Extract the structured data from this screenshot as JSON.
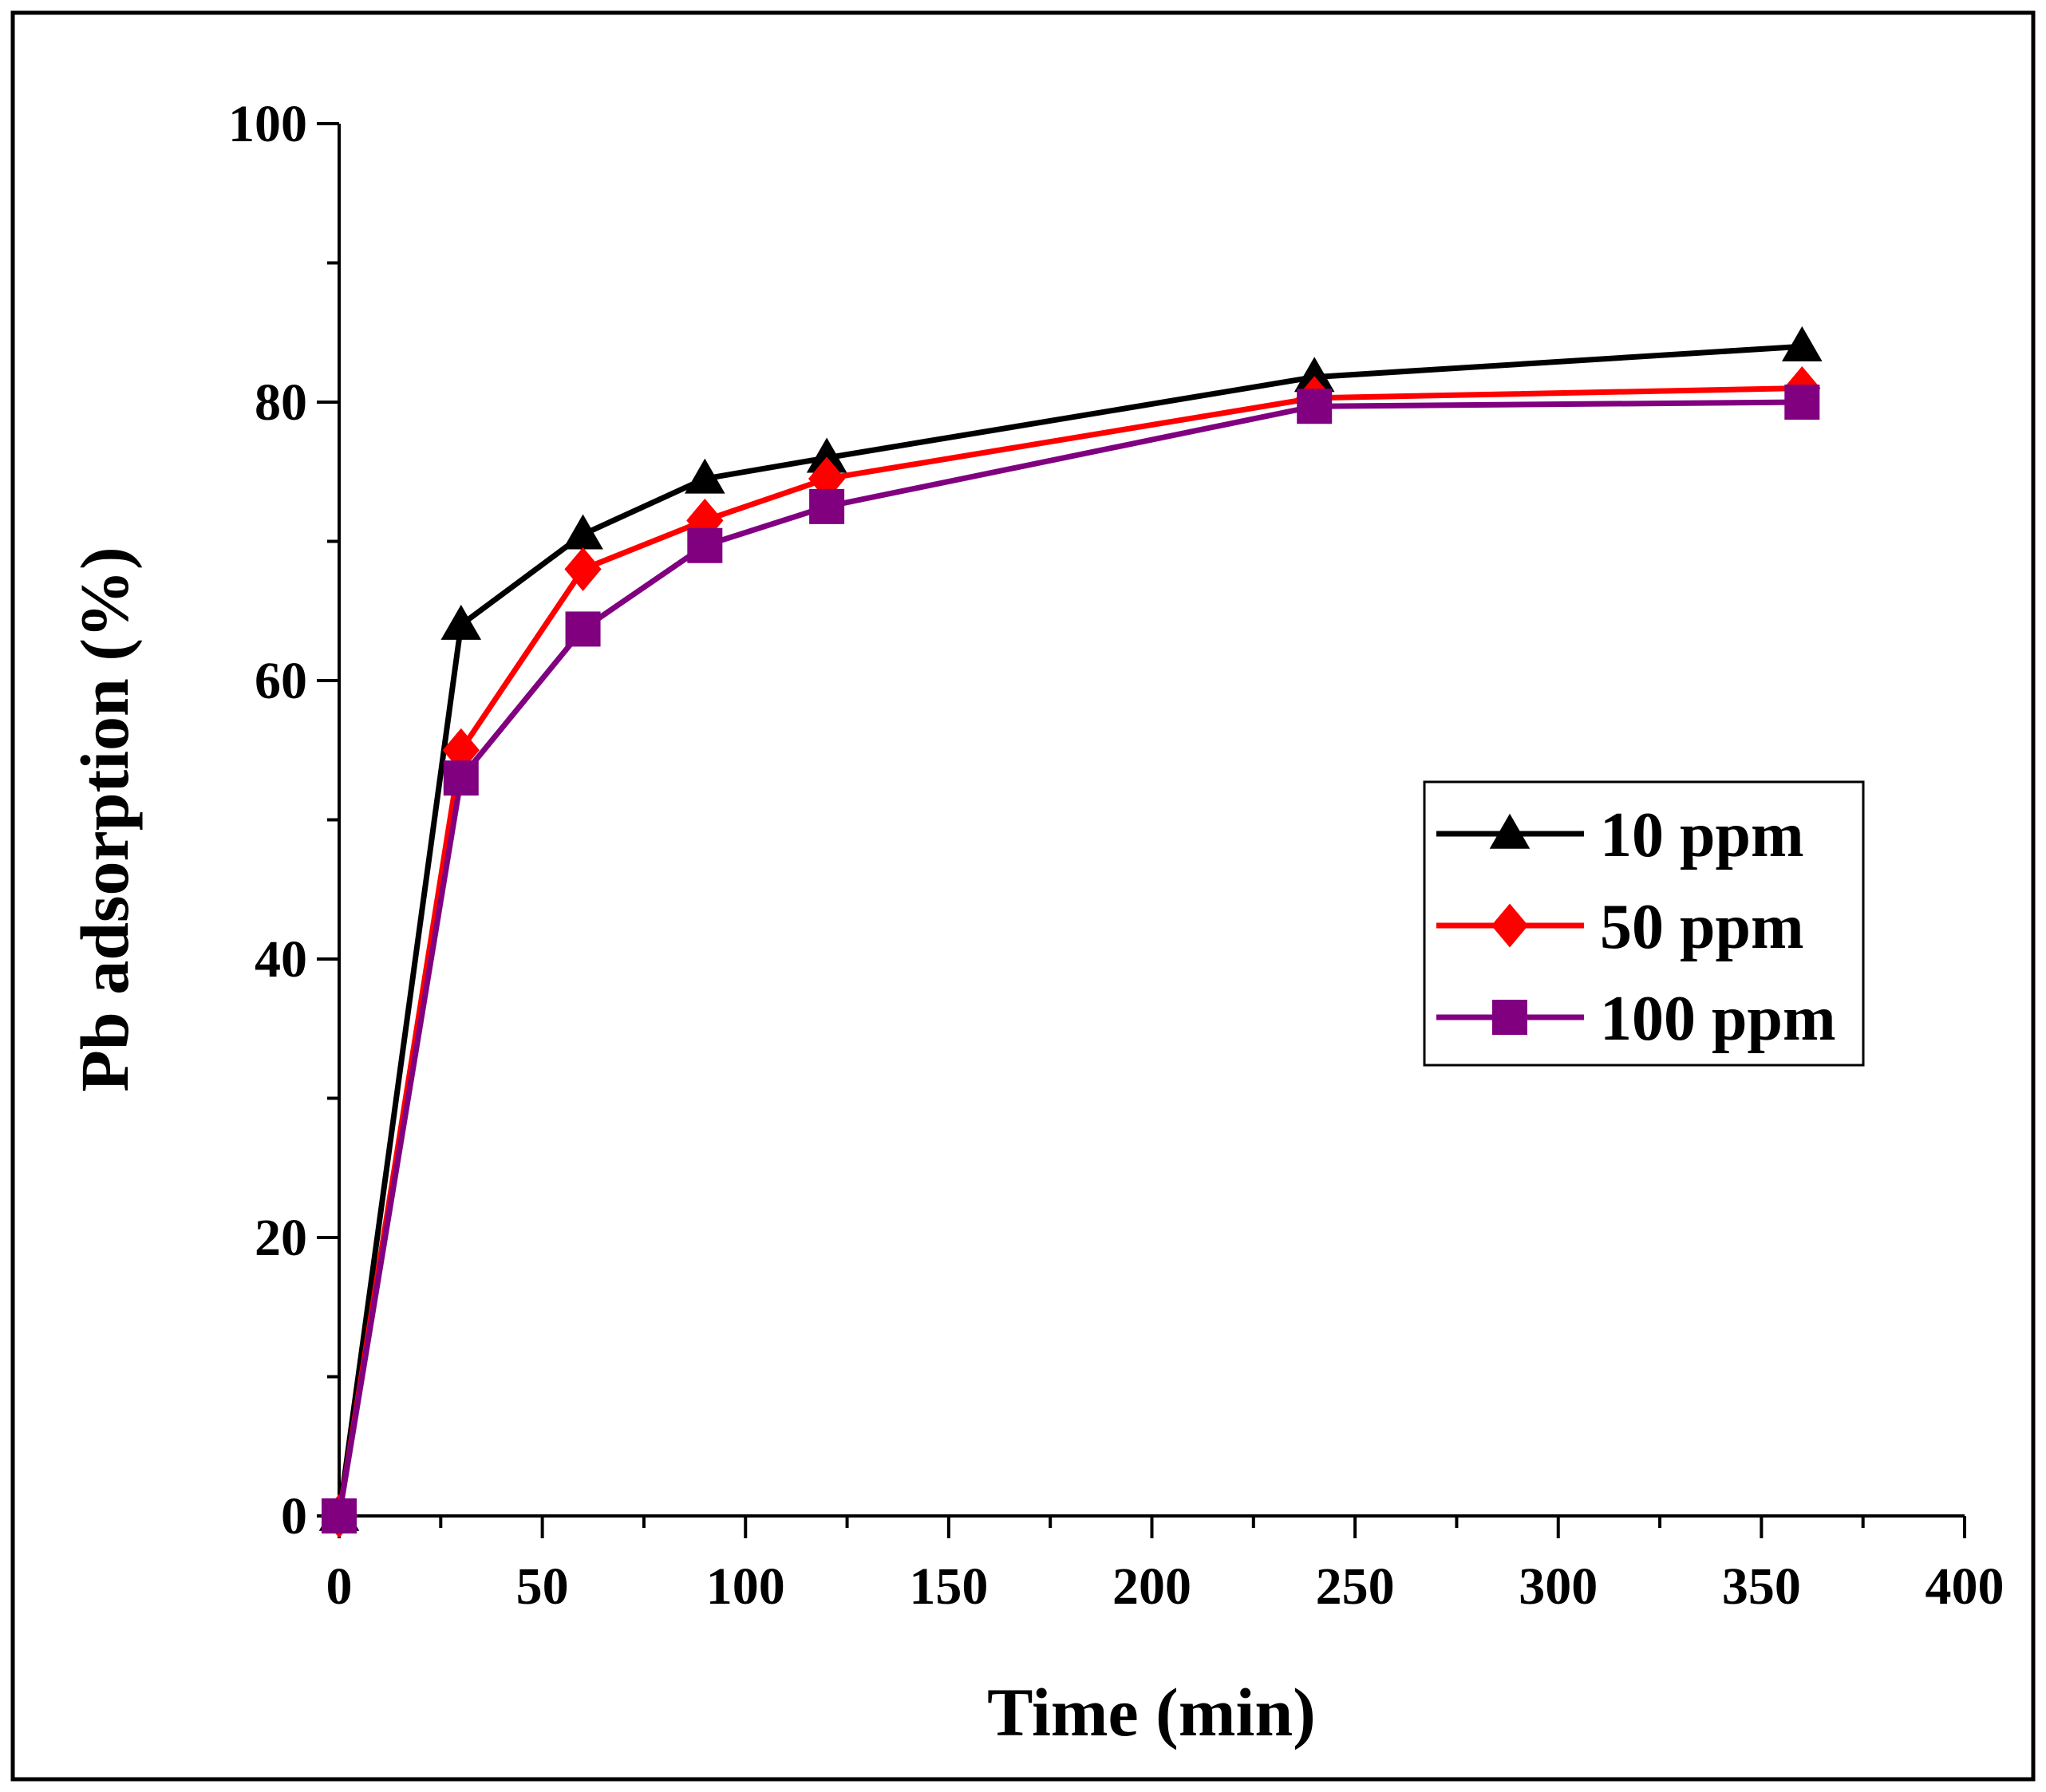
{
  "chart_data": {
    "type": "line",
    "title": "",
    "xlabel": "Time (min)",
    "ylabel": "Pb adsorption (%)",
    "xlim": [
      0,
      400
    ],
    "ylim": [
      0,
      100
    ],
    "xticks": [
      "0",
      "50",
      "100",
      "150",
      "200",
      "250",
      "300",
      "350",
      "400"
    ],
    "yticks": [
      "0",
      "20",
      "40",
      "60",
      "80",
      "100"
    ],
    "grid": false,
    "legend_position": "center-right",
    "x": [
      0,
      30,
      60,
      90,
      120,
      240,
      360
    ],
    "series": [
      {
        "name": "10 ppm",
        "color": "#000000",
        "marker": "triangle",
        "values": [
          0,
          64,
          70.5,
          74.5,
          76,
          81.8,
          84
        ]
      },
      {
        "name": "50 ppm",
        "color": "#ff0000",
        "marker": "diamond",
        "values": [
          0,
          55,
          68,
          71.5,
          74.5,
          80.3,
          81
        ]
      },
      {
        "name": "100 ppm",
        "color": "#800080",
        "marker": "square",
        "values": [
          0,
          53,
          63.7,
          69.7,
          72.5,
          79.7,
          80
        ]
      }
    ]
  }
}
